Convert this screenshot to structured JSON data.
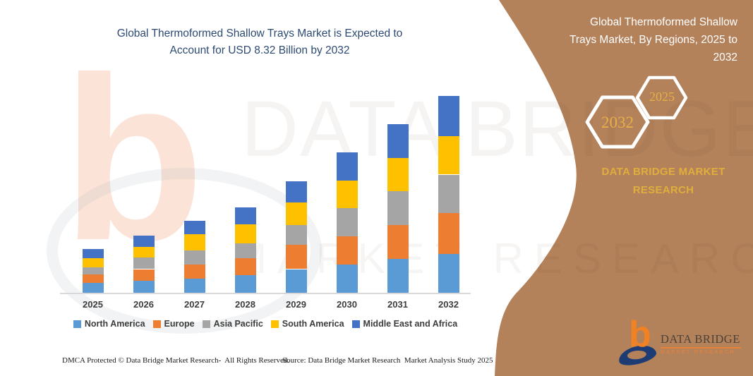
{
  "chart_section": {
    "title_lines": [
      "Global Thermoformed Shallow Trays Market is Expected to",
      "Account for USD 8.32 Billion by 2032"
    ],
    "title_color": "#2D4A73"
  },
  "chart_data": {
    "type": "bar",
    "stacked": true,
    "title": "Global Thermoformed Shallow Trays Market is Expected to Account for USD 8.32 Billion by 2032",
    "unit": "USD Billion",
    "categories": [
      "2025",
      "2026",
      "2027",
      "2028",
      "2029",
      "2030",
      "2031",
      "2032"
    ],
    "series": [
      {
        "name": "North America",
        "color": "#5B9BD5",
        "values": [
          0.42,
          0.5,
          0.6,
          0.75,
          1.0,
          1.19,
          1.44,
          1.64
        ]
      },
      {
        "name": "Europe",
        "color": "#ED7D31",
        "values": [
          0.35,
          0.5,
          0.6,
          0.7,
          1.02,
          1.19,
          1.44,
          1.72
        ]
      },
      {
        "name": "Asia Pacific",
        "color": "#A5A5A5",
        "values": [
          0.3,
          0.48,
          0.6,
          0.65,
          0.85,
          1.19,
          1.41,
          1.64
        ]
      },
      {
        "name": "South America",
        "color": "#FFC000",
        "values": [
          0.4,
          0.45,
          0.68,
          0.8,
          0.95,
          1.19,
          1.4,
          1.64
        ]
      },
      {
        "name": "Middle East and Africa",
        "color": "#4472C4",
        "values": [
          0.38,
          0.49,
          0.56,
          0.72,
          0.9,
          1.17,
          1.43,
          1.68
        ]
      }
    ],
    "totals": [
      1.85,
      2.42,
      3.04,
      3.62,
      4.72,
      5.93,
      7.12,
      8.32
    ],
    "ylim": [
      0,
      8.5
    ],
    "grid": false,
    "y_axis_shown": false,
    "legend_position": "bottom"
  },
  "footer": {
    "dmca": "DMCA Protected © Data Bridge Market Research-  All Rights Reserved.",
    "source": "Source: Data Bridge Market Research  Market Analysis Study 2025"
  },
  "side_panel": {
    "panel_color": "#B3815A",
    "title_lines": [
      "Global Thermoformed Shallow",
      "Trays Market, By Regions, 2025 to",
      "2032"
    ],
    "hexagon_large_year": "2032",
    "hexagon_small_year": "2025",
    "brand_text": "DATA BRIDGE MARKET RESEARCH",
    "gold": "#DFAE3C"
  },
  "logo": {
    "title": "DATA BRIDGE",
    "subtitle": "MARKET RESEARCH"
  },
  "watermark": {
    "line1": "DATA BRIDGE",
    "line2": "MARKET RESEARCH"
  }
}
